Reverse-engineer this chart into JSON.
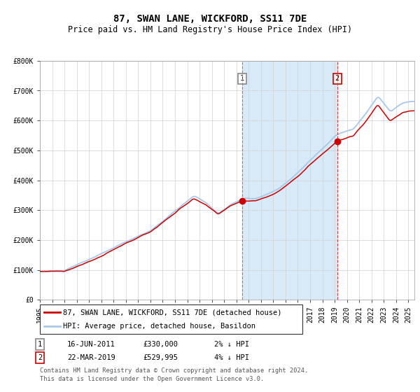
{
  "title": "87, SWAN LANE, WICKFORD, SS11 7DE",
  "subtitle": "Price paid vs. HM Land Registry's House Price Index (HPI)",
  "ylim": [
    0,
    800000
  ],
  "yticks": [
    0,
    100000,
    200000,
    300000,
    400000,
    500000,
    600000,
    700000,
    800000
  ],
  "ytick_labels": [
    "£0",
    "£100K",
    "£200K",
    "£300K",
    "£400K",
    "£500K",
    "£600K",
    "£700K",
    "£800K"
  ],
  "year_start": 1995.0,
  "year_end": 2025.5,
  "hpi_color": "#a8c8e8",
  "price_color": "#cc0000",
  "marker_color": "#cc0000",
  "grid_color": "#d0d0d0",
  "shade_color": "#d8eaf8",
  "vline1_color": "#888888",
  "vline2_color": "#cc4444",
  "sale1_year": 2011.458,
  "sale1_value": 330000,
  "sale2_year": 2019.208,
  "sale2_value": 529995,
  "sale1_date": "16-JUN-2011",
  "sale1_price": "£330,000",
  "sale1_note": "2% ↓ HPI",
  "sale2_date": "22-MAR-2019",
  "sale2_price": "£529,995",
  "sale2_note": "4% ↓ HPI",
  "legend1_label": "87, SWAN LANE, WICKFORD, SS11 7DE (detached house)",
  "legend2_label": "HPI: Average price, detached house, Basildon",
  "footnote1": "Contains HM Land Registry data © Crown copyright and database right 2024.",
  "footnote2": "This data is licensed under the Open Government Licence v3.0.",
  "title_fontsize": 10,
  "subtitle_fontsize": 8.5,
  "tick_fontsize": 7,
  "legend_fontsize": 7.5,
  "annot_fontsize": 7.5
}
